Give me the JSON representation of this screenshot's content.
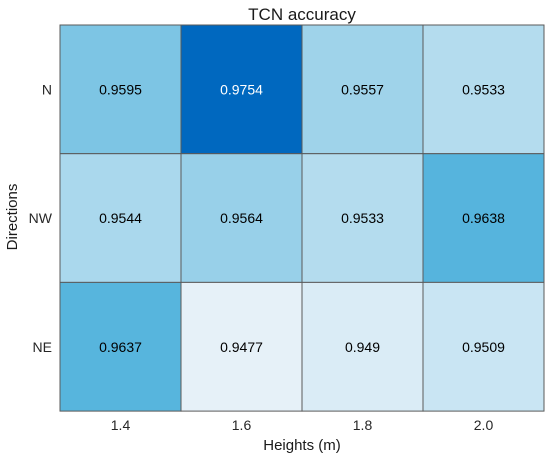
{
  "chart_data": {
    "type": "heatmap",
    "title": "TCN accuracy",
    "xlabel": "Heights (m)",
    "ylabel": "Directions",
    "x_categories": [
      "1.4",
      "1.6",
      "1.8",
      "2.0"
    ],
    "y_categories": [
      "N",
      "NW",
      "NE"
    ],
    "values": [
      [
        0.9595,
        0.9754,
        0.9557,
        0.9533
      ],
      [
        0.9544,
        0.9564,
        0.9533,
        0.9638
      ],
      [
        0.9637,
        0.9477,
        0.949,
        0.9509
      ]
    ],
    "value_labels": [
      [
        "0.9595",
        "0.9754",
        "0.9557",
        "0.9533"
      ],
      [
        "0.9544",
        "0.9564",
        "0.9533",
        "0.9638"
      ],
      [
        "0.9637",
        "0.9477",
        "0.949",
        "0.9509"
      ]
    ],
    "colormap": {
      "low": "#e6f1f8",
      "high": "#0068bf",
      "grid_line": "#5a5a5a",
      "text_dark": "#000000",
      "text_light": "#ffffff"
    },
    "colorbar": false
  }
}
